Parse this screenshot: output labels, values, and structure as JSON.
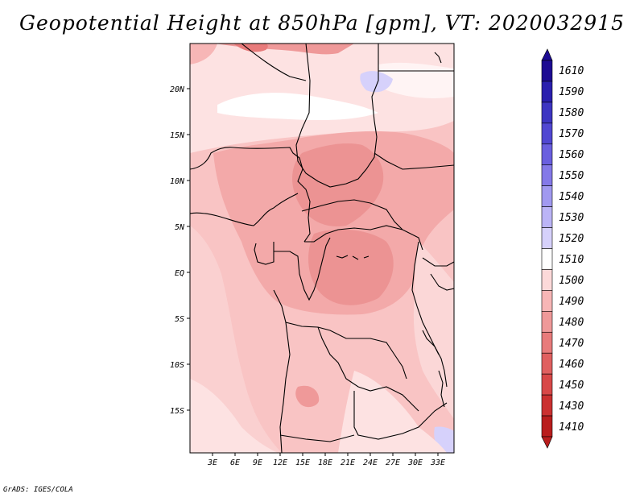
{
  "title": "Geopotential Height at 850hPa [gpm], VT: 2020032915",
  "credit": "GrADS: IGES/COLA",
  "map": {
    "region": "Central Africa",
    "lat_range": [
      -20,
      24.5
    ],
    "lon_range": [
      0,
      35
    ]
  },
  "x_ticks": [
    "3E",
    "6E",
    "9E",
    "12E",
    "15E",
    "18E",
    "21E",
    "24E",
    "27E",
    "30E",
    "33E"
  ],
  "y_ticks": [
    "20N",
    "15N",
    "10N",
    "5N",
    "EQ",
    "5S",
    "10S",
    "15S"
  ],
  "colorbar": {
    "labels": [
      "1610",
      "1590",
      "1580",
      "1570",
      "1560",
      "1550",
      "1540",
      "1530",
      "1520",
      "1510",
      "1500",
      "1490",
      "1480",
      "1470",
      "1460",
      "1450",
      "1430",
      "1410"
    ],
    "colors": [
      "#1d0b93",
      "#2a1fae",
      "#3d35c2",
      "#5147d2",
      "#6a5fdf",
      "#8479e8",
      "#a199f0",
      "#bbb4f6",
      "#d6d1fb",
      "#ffffff",
      "#fcd9d9",
      "#f7b6b6",
      "#ef9999",
      "#e87b7b",
      "#e06060",
      "#d84848",
      "#cb3030",
      "#b91d1d"
    ]
  }
}
